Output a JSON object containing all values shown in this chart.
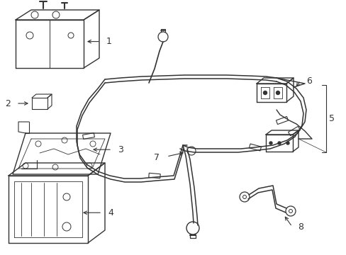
{
  "background_color": "#ffffff",
  "line_color": "#333333",
  "lw": 0.8,
  "fig_width": 4.89,
  "fig_height": 3.6,
  "dpi": 100
}
